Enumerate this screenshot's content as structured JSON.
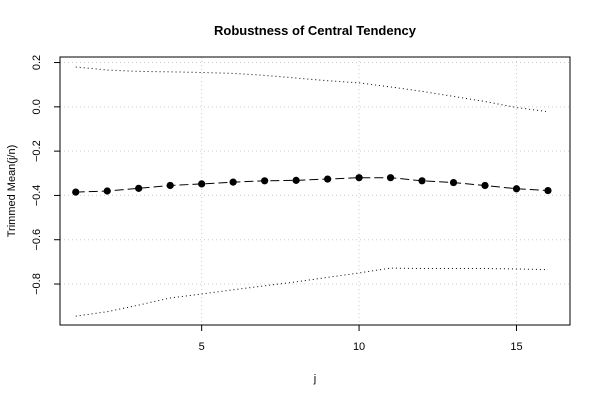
{
  "chart_data": {
    "type": "line",
    "title": "Robustness of Central Tendency",
    "xlabel": "j",
    "ylabel": "Trimmed Mean(j/n)",
    "xlim": [
      0.5,
      16.7
    ],
    "ylim": [
      -0.985,
      0.225
    ],
    "x_ticks": [
      5,
      10,
      15
    ],
    "y_ticks": [
      -0.8,
      -0.6,
      -0.4,
      -0.2,
      0.0,
      0.2
    ],
    "x_tick_labels": [
      "5",
      "10",
      "15"
    ],
    "y_tick_labels": [
      "−0.8",
      "−0.6",
      "−0.4",
      "−0.2",
      "0.0",
      "0.2"
    ],
    "grid": true,
    "x": [
      1,
      2,
      3,
      4,
      5,
      6,
      7,
      8,
      9,
      10,
      11,
      12,
      13,
      14,
      15,
      16
    ],
    "series": [
      {
        "role": "mean",
        "style": "dashed-with-points",
        "values": [
          -0.385,
          -0.38,
          -0.368,
          -0.355,
          -0.348,
          -0.34,
          -0.334,
          -0.332,
          -0.326,
          -0.32,
          -0.32,
          -0.334,
          -0.342,
          -0.355,
          -0.37,
          -0.378
        ]
      },
      {
        "role": "upper",
        "style": "dotted",
        "values": [
          0.18,
          0.166,
          0.16,
          0.158,
          0.155,
          0.151,
          0.142,
          0.13,
          0.118,
          0.108,
          0.09,
          0.07,
          0.047,
          0.024,
          -0.003,
          -0.022
        ]
      },
      {
        "role": "lower",
        "style": "dotted",
        "values": [
          -0.945,
          -0.925,
          -0.895,
          -0.863,
          -0.845,
          -0.826,
          -0.808,
          -0.79,
          -0.77,
          -0.75,
          -0.728,
          -0.73,
          -0.73,
          -0.73,
          -0.732,
          -0.735
        ]
      }
    ],
    "colors": {
      "line": "#000000",
      "grid": "#cccccc",
      "background": "#ffffff"
    }
  }
}
